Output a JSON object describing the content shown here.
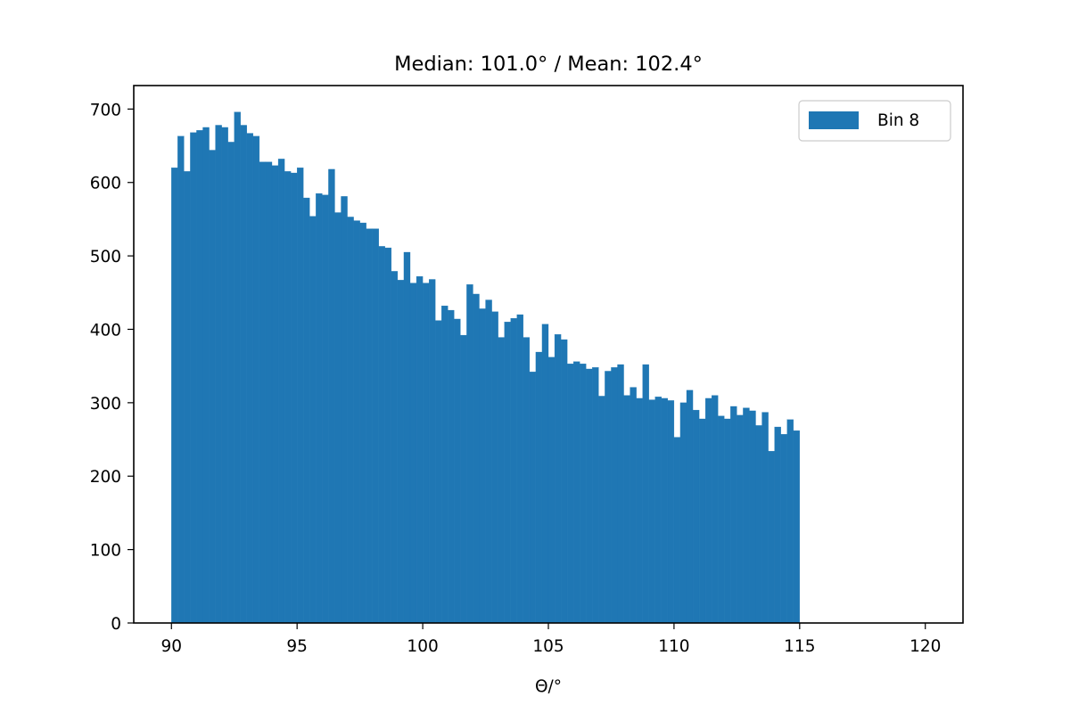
{
  "chart_data": {
    "type": "bar",
    "title": "Median: 101.0° / Mean: 102.4°",
    "xlabel": "Θ/°",
    "ylabel": "",
    "xlim": [
      88.5,
      121.5
    ],
    "ylim": [
      0,
      732
    ],
    "x_ticks": [
      "90",
      "95",
      "100",
      "105",
      "110",
      "115",
      "120"
    ],
    "y_ticks": [
      "0",
      "100",
      "200",
      "300",
      "400",
      "500",
      "600",
      "700"
    ],
    "bin_start": 90,
    "bin_width": 0.25,
    "legend_position": "top-right",
    "grid": false,
    "series": [
      {
        "name": "Bin 8",
        "color": "#1f77b4",
        "values": [
          620,
          663,
          615,
          668,
          671,
          675,
          644,
          678,
          675,
          655,
          696,
          678,
          667,
          663,
          628,
          628,
          623,
          632,
          615,
          613,
          620,
          579,
          554,
          585,
          583,
          618,
          559,
          581,
          553,
          548,
          545,
          537,
          537,
          513,
          511,
          479,
          467,
          505,
          463,
          472,
          463,
          468,
          412,
          432,
          426,
          414,
          392,
          461,
          448,
          428,
          440,
          424,
          389,
          410,
          415,
          420,
          389,
          342,
          369,
          407,
          362,
          393,
          386,
          353,
          356,
          353,
          346,
          348,
          309,
          343,
          348,
          352,
          310,
          321,
          306,
          352,
          304,
          308,
          306,
          303,
          253,
          300,
          317,
          290,
          278,
          306,
          310,
          282,
          278,
          295,
          283,
          293,
          289,
          269,
          287,
          234,
          267,
          257,
          277,
          262
        ]
      }
    ]
  }
}
